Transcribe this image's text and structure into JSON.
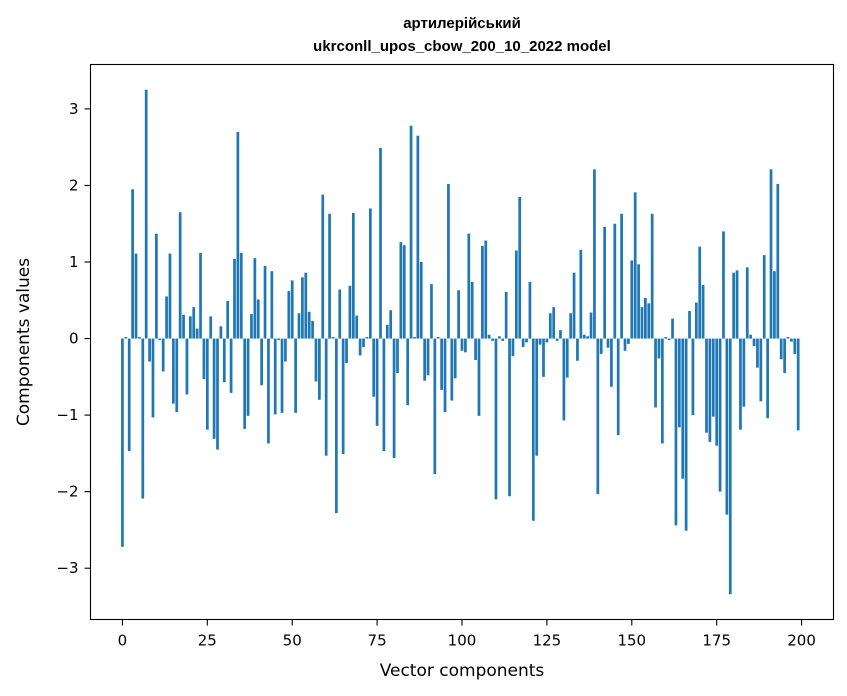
{
  "chart_data": {
    "type": "bar",
    "title_line1": "артилерійський",
    "title_line2": "ukrconll_upos_cbow_200_10_2022 model",
    "xlabel": "Vector components",
    "ylabel": "Components values",
    "xlim": [
      -9.4,
      209.4
    ],
    "ylim": [
      -3.67,
      3.58
    ],
    "xticks": [
      0,
      25,
      50,
      75,
      100,
      125,
      150,
      175,
      200
    ],
    "xtick_labels": [
      "0",
      "25",
      "50",
      "75",
      "100",
      "125",
      "150",
      "175",
      "200"
    ],
    "yticks": [
      -3,
      -2,
      -1,
      0,
      1,
      2,
      3
    ],
    "ytick_labels": [
      "−3",
      "−2",
      "−1",
      "0",
      "1",
      "2",
      "3"
    ],
    "grid": false,
    "bar_color": "#1f77b4",
    "values": [
      -2.72,
      0.02,
      -1.47,
      1.95,
      1.11,
      0.02,
      -2.09,
      3.25,
      -0.3,
      -1.03,
      1.37,
      -0.02,
      -0.43,
      0.55,
      1.11,
      -0.85,
      -0.96,
      1.65,
      0.31,
      -0.73,
      0.29,
      0.41,
      0.13,
      1.12,
      -0.53,
      -1.19,
      0.29,
      -1.31,
      -1.45,
      0.16,
      -0.57,
      0.49,
      -0.71,
      1.04,
      2.7,
      1.12,
      -1.18,
      -1.01,
      0.32,
      1.05,
      0.51,
      -0.61,
      0.95,
      -1.37,
      0.88,
      -0.99,
      -0.02,
      -0.97,
      -0.3,
      0.62,
      0.76,
      -0.97,
      0.33,
      0.8,
      0.86,
      0.35,
      0.23,
      -0.56,
      -0.8,
      1.88,
      -1.53,
      1.63,
      0.02,
      -2.28,
      0.64,
      -1.51,
      -0.32,
      0.69,
      1.64,
      0.3,
      -0.22,
      -0.11,
      0.02,
      1.7,
      -0.76,
      -1.14,
      2.49,
      -1.47,
      0.18,
      0.37,
      -1.56,
      -0.45,
      1.26,
      1.22,
      -0.87,
      2.78,
      0.02,
      2.65,
      1.0,
      -0.55,
      -0.48,
      0.71,
      -1.77,
      0.02,
      -0.67,
      -0.96,
      2.02,
      -0.81,
      -0.52,
      0.63,
      -0.16,
      -0.18,
      1.37,
      0.74,
      -0.28,
      -1.01,
      1.21,
      1.28,
      0.05,
      -0.03,
      -2.1,
      0.03,
      -0.03,
      0.61,
      -2.06,
      -0.23,
      1.15,
      1.85,
      -0.11,
      -0.05,
      0.74,
      -2.38,
      -1.53,
      -0.08,
      -0.5,
      -0.05,
      0.33,
      0.41,
      -0.03,
      0.11,
      -1.07,
      -0.51,
      0.33,
      0.86,
      -0.29,
      1.16,
      0.05,
      0.03,
      0.34,
      2.21,
      -2.03,
      -0.2,
      1.46,
      -0.12,
      -0.63,
      1.5,
      -1.26,
      1.63,
      -0.16,
      -0.07,
      1.02,
      1.91,
      0.97,
      0.41,
      0.53,
      0.46,
      1.63,
      -0.9,
      -0.26,
      -1.37,
      0.02,
      -0.02,
      0.26,
      -2.44,
      -1.16,
      -1.83,
      -2.51,
      0.36,
      -1.0,
      0.47,
      1.2,
      0.7,
      -1.23,
      -1.35,
      -1.02,
      -1.4,
      -2.0,
      1.4,
      -2.3,
      -3.34,
      0.86,
      0.89,
      -1.19,
      -0.89,
      0.93,
      0.05,
      -0.1,
      -0.38,
      -0.82,
      1.09,
      -1.04,
      2.21,
      0.88,
      2.02,
      -0.27,
      -0.45,
      0.02,
      -0.04,
      -0.2,
      -1.2
    ]
  }
}
